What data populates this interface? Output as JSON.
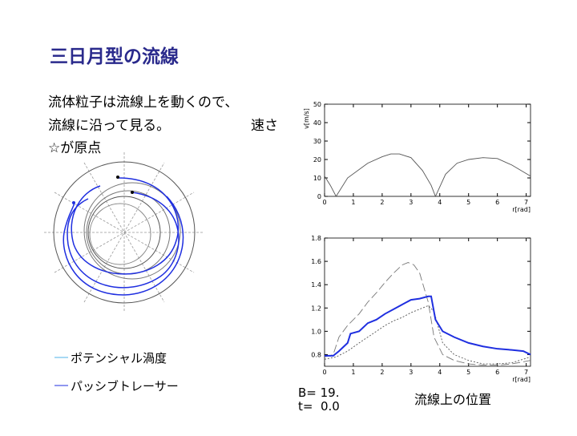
{
  "slide": {
    "title": "三日月型の流線",
    "body": [
      "流体粒子は流線上を動くので、",
      "流線に沿って見る。",
      "☆が原点"
    ],
    "speed_label": "速さ",
    "legend": [
      "ポテンシャル渦度",
      "パッシブトレーサー"
    ],
    "params": [
      "B= 19.",
      "t=  0.0"
    ],
    "position_label": "流線上の位置"
  },
  "chart_data": [
    {
      "type": "line",
      "y_label": "v[m/s]",
      "x_label": "r[rad]",
      "xlim": [
        0,
        7.15
      ],
      "ylim": [
        0,
        50
      ],
      "xticks": [
        0,
        1,
        2,
        3,
        4,
        5,
        6,
        7
      ],
      "yticks": [
        0,
        10,
        20,
        30,
        40,
        50
      ],
      "series": [
        {
          "color": "#555555",
          "style": "solid",
          "x": [
            0,
            0.2,
            0.4,
            0.8,
            1.5,
            2.0,
            2.3,
            2.6,
            3.0,
            3.4,
            3.7,
            3.85,
            4.2,
            4.6,
            5.0,
            5.5,
            6.0,
            6.5,
            7.15
          ],
          "values": [
            11,
            6,
            0,
            10,
            18,
            21.5,
            23,
            23,
            21,
            14,
            6,
            0,
            12,
            18,
            20,
            21,
            20.5,
            17,
            11
          ]
        }
      ]
    },
    {
      "type": "line",
      "x_label": "r[rad]",
      "xlim": [
        0,
        7.15
      ],
      "ylim": [
        0.7,
        1.8
      ],
      "xticks": [
        0,
        1,
        2,
        3,
        4,
        5,
        6,
        7
      ],
      "yticks": [
        0.8,
        {
          "value": 1,
          "label": "1.0"
        },
        1.2,
        1.4,
        1.6,
        1.8
      ],
      "series": [
        {
          "color": "#777777",
          "style": "dashed",
          "x": [
            0,
            0.3,
            0.5,
            0.8,
            1.2,
            1.5,
            1.8,
            2.1,
            2.4,
            2.7,
            2.9,
            3.1,
            3.3,
            3.6,
            3.8,
            4.1,
            4.5,
            5.0,
            5.5,
            6.0,
            6.5,
            7.15
          ],
          "values": [
            0.78,
            0.8,
            0.95,
            1.05,
            1.15,
            1.25,
            1.33,
            1.42,
            1.5,
            1.57,
            1.59,
            1.57,
            1.5,
            1.25,
            0.95,
            0.8,
            0.75,
            0.72,
            0.71,
            0.71,
            0.72,
            0.75
          ]
        },
        {
          "color": "#555555",
          "style": "dotted",
          "x": [
            0,
            0.4,
            0.8,
            1.2,
            1.5,
            1.8,
            2.1,
            2.4,
            2.7,
            3.0,
            3.3,
            3.6,
            3.8,
            4.1,
            4.5,
            5.0,
            5.5,
            6.0,
            6.5,
            7.15
          ],
          "values": [
            0.76,
            0.78,
            0.83,
            0.9,
            0.95,
            1.0,
            1.05,
            1.09,
            1.12,
            1.16,
            1.19,
            1.22,
            1.17,
            0.9,
            0.8,
            0.75,
            0.72,
            0.72,
            0.73,
            0.78
          ]
        },
        {
          "color": "#1f2fe0",
          "style": "thick",
          "x": [
            0,
            0.3,
            0.5,
            0.8,
            0.9,
            1.2,
            1.5,
            1.8,
            2.1,
            2.4,
            2.7,
            3.0,
            3.3,
            3.6,
            3.7,
            3.85,
            4.1,
            4.5,
            5.0,
            5.5,
            6.0,
            6.5,
            6.9,
            7.15
          ],
          "values": [
            0.79,
            0.79,
            0.83,
            0.9,
            0.98,
            1.0,
            1.07,
            1.1,
            1.15,
            1.19,
            1.23,
            1.27,
            1.28,
            1.3,
            1.3,
            1.1,
            1.0,
            0.95,
            0.9,
            0.87,
            0.85,
            0.84,
            0.83,
            0.8
          ]
        }
      ]
    }
  ]
}
